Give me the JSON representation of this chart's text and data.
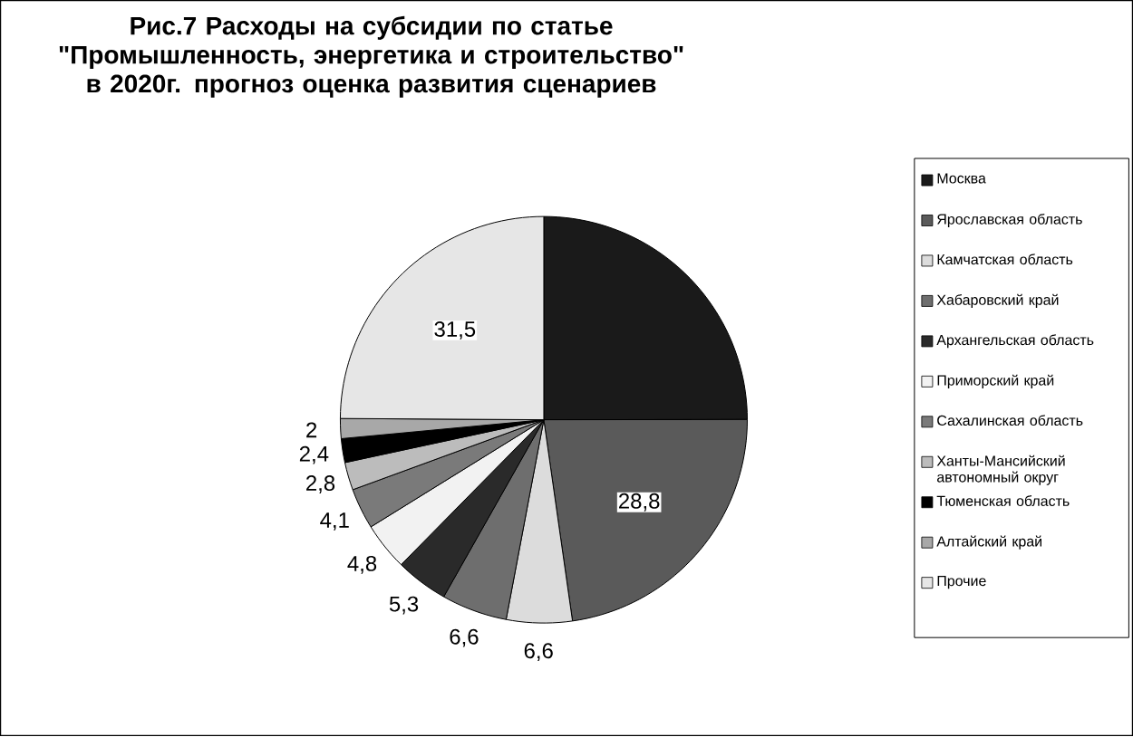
{
  "chart_data": {
    "type": "pie",
    "title": "Рис.7  Расходы на субсидии по статье \"Промышленность, энергетика и строительство\" в 2020г. прогноз оценка развития сценариев",
    "categories": [
      "Москва",
      "Ярославская область",
      "Камчатская область",
      "Хабаровский край",
      "Архангельская область",
      "Приморский край",
      "Сахалинская область",
      "Ханты-Мансийский автономный округ",
      "Тюменская область",
      "Алтайский край",
      "Прочие"
    ],
    "values": [
      31.6,
      28.8,
      6.6,
      6.6,
      5.3,
      4.8,
      4.1,
      2.8,
      2.4,
      2,
      31.5
    ],
    "value_labels": [
      null,
      "28,8",
      "6,6",
      "6,6",
      "5,3",
      "4,8",
      "4,1",
      "2,8",
      "2,4",
      "2",
      "31,5"
    ],
    "colors": [
      "#1a1a1a",
      "#5a5a5a",
      "#dcdcdc",
      "#6e6e6e",
      "#2a2a2a",
      "#f2f2f2",
      "#7a7a7a",
      "#bcbcbc",
      "#000000",
      "#a8a8a8",
      "#e6e6e6"
    ],
    "legend": "right"
  }
}
